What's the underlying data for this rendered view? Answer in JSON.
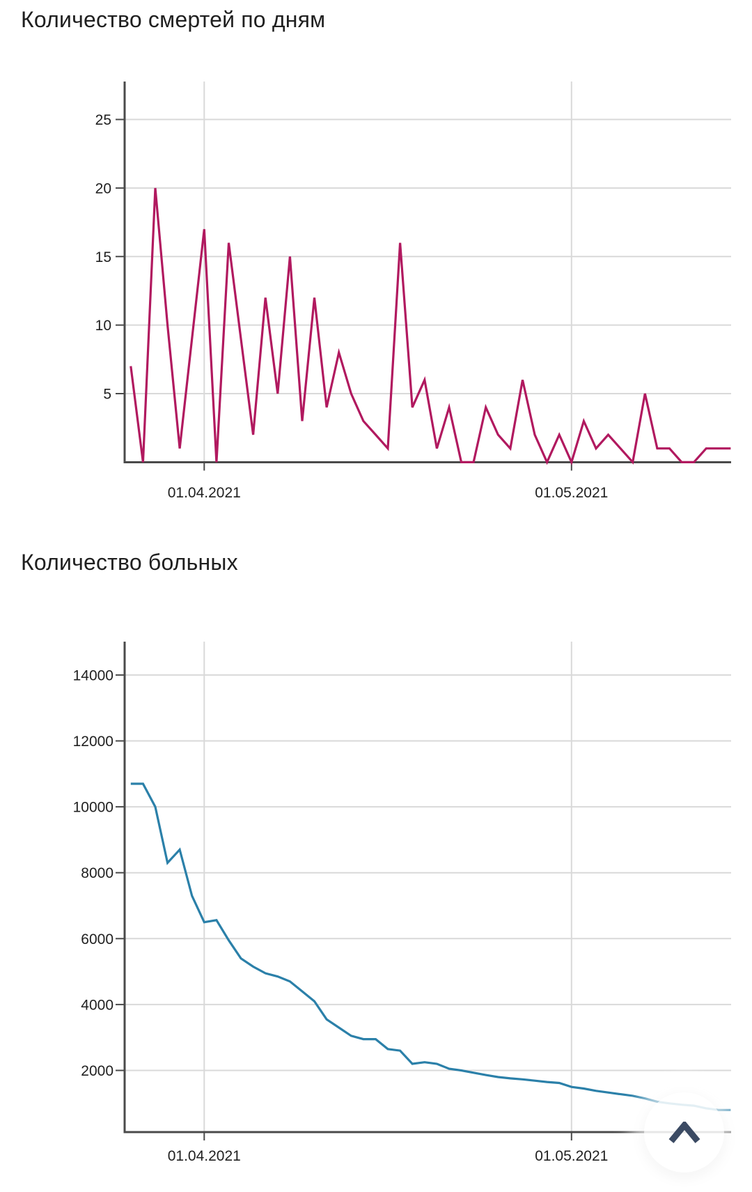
{
  "chart_data": [
    {
      "type": "line",
      "title": "Количество смертей по дням",
      "line_color": "#b1195f",
      "grid": true,
      "legend": "none",
      "xlabel": "",
      "ylabel": "",
      "ylim": [
        0,
        27.8
      ],
      "y_ticks": [
        25,
        20,
        15,
        10,
        5
      ],
      "x_tick_labels": [
        "01.04.2021",
        "01.05.2021"
      ],
      "x": [
        "26.03.2021",
        "27.03.2021",
        "28.03.2021",
        "29.03.2021",
        "30.03.2021",
        "31.03.2021",
        "01.04.2021",
        "02.04.2021",
        "03.04.2021",
        "04.04.2021",
        "05.04.2021",
        "06.04.2021",
        "07.04.2021",
        "08.04.2021",
        "09.04.2021",
        "10.04.2021",
        "11.04.2021",
        "12.04.2021",
        "13.04.2021",
        "14.04.2021",
        "15.04.2021",
        "16.04.2021",
        "17.04.2021",
        "18.04.2021",
        "19.04.2021",
        "20.04.2021",
        "21.04.2021",
        "22.04.2021",
        "23.04.2021",
        "24.04.2021",
        "25.04.2021",
        "26.04.2021",
        "27.04.2021",
        "28.04.2021",
        "29.04.2021",
        "30.04.2021",
        "01.05.2021",
        "02.05.2021",
        "03.05.2021",
        "04.05.2021",
        "05.05.2021",
        "06.05.2021",
        "07.05.2021",
        "08.05.2021",
        "09.05.2021",
        "10.05.2021",
        "11.05.2021",
        "12.05.2021",
        "13.05.2021",
        "14.05.2021"
      ],
      "values": [
        7,
        0,
        20,
        10,
        1,
        9,
        17,
        0,
        16,
        9,
        2,
        12,
        5,
        15,
        3,
        12,
        4,
        8,
        5,
        3,
        2,
        1,
        16,
        4,
        6,
        1,
        4,
        0,
        0,
        4,
        2,
        1,
        6,
        2,
        0,
        2,
        0,
        3,
        1,
        2,
        1,
        0,
        5,
        1,
        1,
        0,
        0,
        1,
        1,
        1
      ]
    },
    {
      "type": "line",
      "title": "Количество больных",
      "line_color": "#2b80a9",
      "grid": true,
      "legend": "none",
      "xlabel": "",
      "ylabel": "",
      "ylim": [
        0,
        15300
      ],
      "y_ticks": [
        14000,
        12000,
        10000,
        8000,
        6000,
        4000,
        2000
      ],
      "x_tick_labels": [
        "01.04.2021",
        "01.05.2021"
      ],
      "x": [
        "26.03.2021",
        "27.03.2021",
        "28.03.2021",
        "29.03.2021",
        "30.03.2021",
        "31.03.2021",
        "01.04.2021",
        "02.04.2021",
        "03.04.2021",
        "04.04.2021",
        "05.04.2021",
        "06.04.2021",
        "07.04.2021",
        "08.04.2021",
        "09.04.2021",
        "10.04.2021",
        "11.04.2021",
        "12.04.2021",
        "13.04.2021",
        "14.04.2021",
        "15.04.2021",
        "16.04.2021",
        "17.04.2021",
        "18.04.2021",
        "19.04.2021",
        "20.04.2021",
        "21.04.2021",
        "22.04.2021",
        "23.04.2021",
        "24.04.2021",
        "25.04.2021",
        "26.04.2021",
        "27.04.2021",
        "28.04.2021",
        "29.04.2021",
        "30.04.2021",
        "01.05.2021",
        "02.05.2021",
        "03.05.2021",
        "04.05.2021",
        "05.05.2021",
        "06.05.2021",
        "07.05.2021",
        "08.05.2021",
        "09.05.2021",
        "10.05.2021",
        "11.05.2021",
        "12.05.2021",
        "13.05.2021",
        "14.05.2021"
      ],
      "values": [
        10700,
        10700,
        10000,
        8300,
        8700,
        7300,
        6500,
        6560,
        5950,
        5400,
        5150,
        4950,
        4850,
        4700,
        4400,
        4100,
        3550,
        3300,
        3050,
        2950,
        2950,
        2650,
        2600,
        2200,
        2250,
        2200,
        2050,
        2000,
        1930,
        1860,
        1800,
        1760,
        1730,
        1690,
        1650,
        1620,
        1500,
        1450,
        1380,
        1330,
        1280,
        1230,
        1150,
        1050,
        1000,
        960,
        930,
        850,
        800,
        800
      ]
    }
  ],
  "style": {
    "axis_color": "#4a4a4a",
    "grid_color": "#d9d9d9",
    "tick_label_color": "#212121",
    "title_color": "#1f1f1f",
    "background": "#ffffff"
  },
  "fab": {
    "icon": "chevron-up",
    "icon_color": "#3b4a63"
  }
}
